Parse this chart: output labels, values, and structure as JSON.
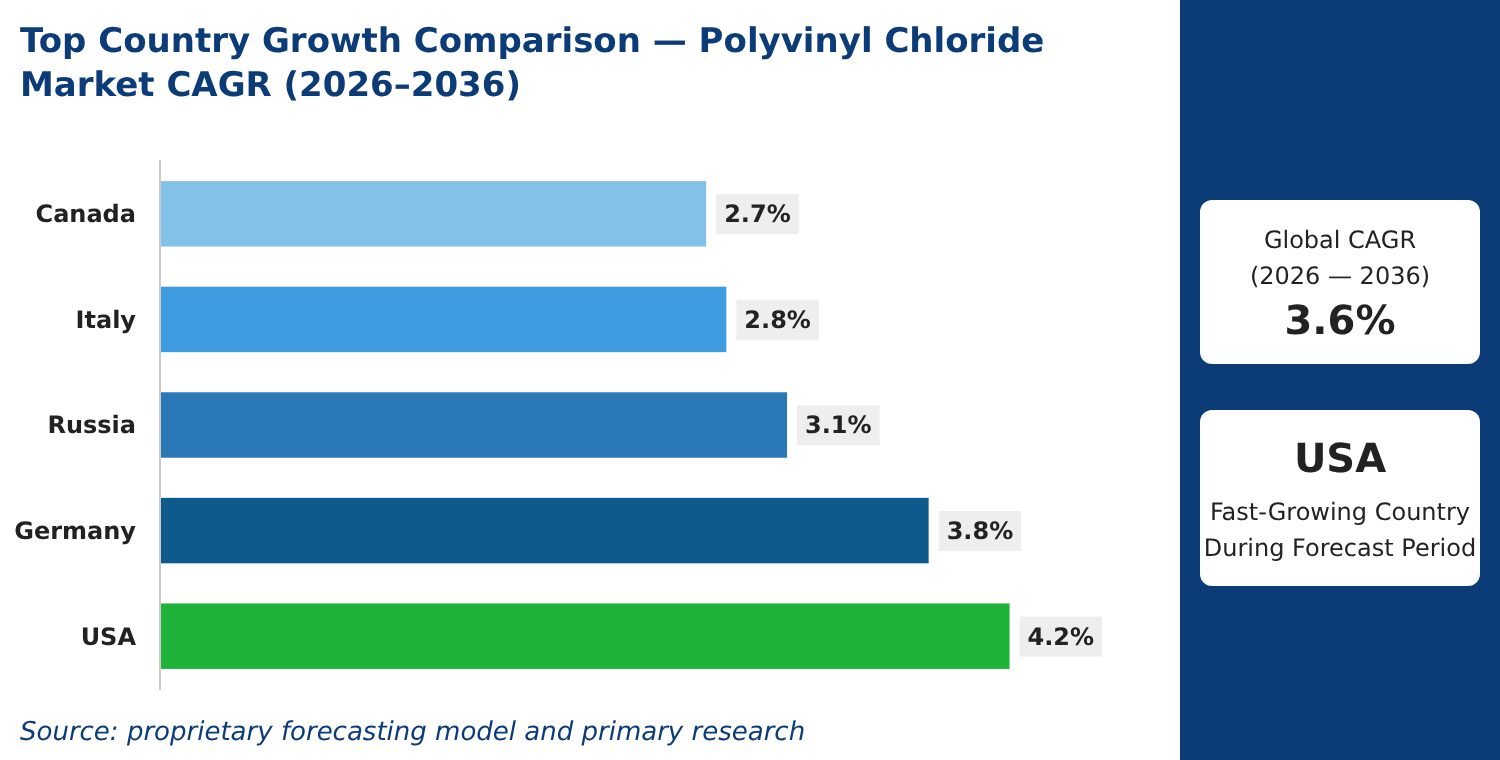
{
  "chart_data": {
    "type": "bar",
    "orientation": "horizontal",
    "title": "Top Country Growth Comparison — Polyvinyl Chloride Market CAGR (2026–2036)",
    "categories": [
      "Canada",
      "Italy",
      "Russia",
      "Germany",
      "USA"
    ],
    "values": [
      2.7,
      2.8,
      3.1,
      3.8,
      4.2
    ],
    "colors": [
      "#82c1e8",
      "#3d9be0",
      "#2a78b5",
      "#0e5a8c",
      "#1fb33a"
    ],
    "value_labels": [
      "2.7%",
      "2.8%",
      "3.1%",
      "3.8%",
      "4.2%"
    ],
    "relative": false,
    "annotations": [
      "Source: proprietary forecasting model and primary research",
      "Global CAGR",
      "(2026 — 2036)",
      "3.6%",
      "USA",
      "Fast-Growing Country",
      "During Forecast Period"
    ]
  }
}
